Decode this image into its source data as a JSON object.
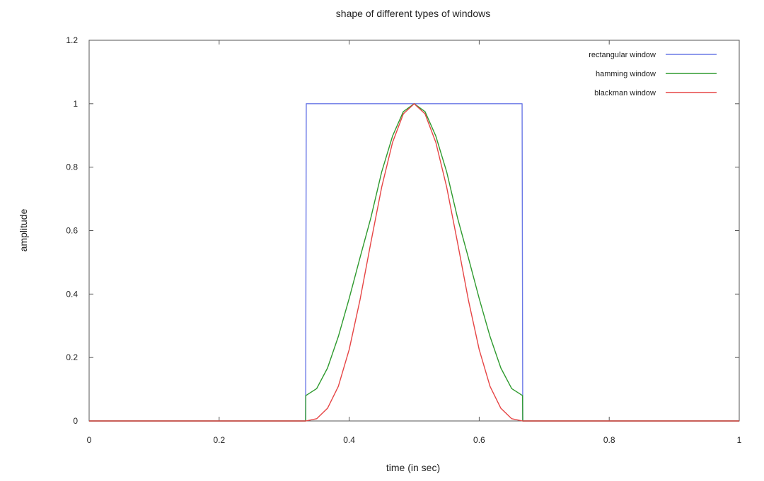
{
  "chart_data": {
    "type": "line",
    "title": "shape of different types of windows",
    "xlabel": "time (in sec)",
    "ylabel": "amplitude",
    "xlim": [
      0,
      1
    ],
    "ylim": [
      0,
      1.2
    ],
    "x_ticks": [
      0,
      0.2,
      0.4,
      0.6,
      0.8,
      1
    ],
    "x_tick_labels": [
      "0",
      "0.2",
      "0.4",
      "0.6",
      "0.8",
      "1"
    ],
    "y_ticks": [
      0,
      0.2,
      0.4,
      0.6,
      0.8,
      1,
      1.2
    ],
    "y_tick_labels": [
      "0",
      "0.2",
      "0.4",
      "0.6",
      "0.8",
      "1",
      "1.2"
    ],
    "grid": false,
    "legend_position": "top-right",
    "series": [
      {
        "name": "rectangular window",
        "color": "#6a78e6",
        "x": [
          0,
          0.333,
          0.334,
          0.666,
          0.667,
          1
        ],
        "y": [
          0,
          0,
          1,
          1,
          0,
          0
        ]
      },
      {
        "name": "hamming window",
        "color": "#2e9a2e",
        "x": [
          0,
          0.333,
          0.3333,
          0.35,
          0.3667,
          0.3833,
          0.4,
          0.4167,
          0.4333,
          0.45,
          0.4667,
          0.4833,
          0.5,
          0.5167,
          0.5333,
          0.55,
          0.5667,
          0.5833,
          0.6,
          0.6167,
          0.6333,
          0.65,
          0.6667,
          0.667,
          1
        ],
        "y": [
          0,
          0,
          0.08,
          0.102,
          0.167,
          0.266,
          0.386,
          0.515,
          0.64,
          0.785,
          0.898,
          0.975,
          1.0,
          0.975,
          0.898,
          0.785,
          0.64,
          0.515,
          0.386,
          0.266,
          0.167,
          0.102,
          0.08,
          0,
          0
        ]
      },
      {
        "name": "blackman window",
        "color": "#e64545",
        "x": [
          0,
          0.3333,
          0.35,
          0.3667,
          0.3833,
          0.4,
          0.4167,
          0.4333,
          0.45,
          0.4667,
          0.4833,
          0.5,
          0.5167,
          0.5333,
          0.55,
          0.5667,
          0.5833,
          0.6,
          0.6167,
          0.6333,
          0.65,
          0.6667,
          1
        ],
        "y": [
          0,
          0,
          0.007,
          0.04,
          0.109,
          0.225,
          0.382,
          0.562,
          0.737,
          0.878,
          0.968,
          1.0,
          0.968,
          0.878,
          0.737,
          0.562,
          0.382,
          0.225,
          0.109,
          0.04,
          0.007,
          0,
          0
        ]
      }
    ]
  }
}
